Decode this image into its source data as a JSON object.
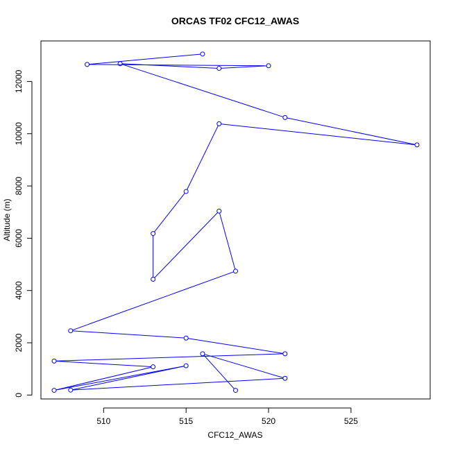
{
  "chart_data": {
    "type": "line",
    "title": "ORCAS TF02 CFC12_AWAS",
    "xlabel": "CFC12_AWAS",
    "ylabel": "Altitude (m)",
    "xlim": [
      506.2,
      529.8
    ],
    "ylim": [
      -150,
      13550
    ],
    "xticks": [
      510,
      515,
      520,
      525
    ],
    "yticks": [
      0,
      2000,
      4000,
      6000,
      8000,
      10000,
      12000
    ],
    "grid": false,
    "markers": "open-circle",
    "color": "#0000ff",
    "series": [
      {
        "x": [
          516,
          509,
          520,
          517,
          511,
          521,
          529,
          517,
          515,
          513,
          513,
          517,
          518,
          508,
          515,
          521,
          507,
          513,
          507,
          515,
          508,
          521,
          516,
          518
        ],
        "y": [
          13050,
          12650,
          12600,
          12500,
          12680,
          10620,
          9570,
          10380,
          7790,
          6180,
          4430,
          7040,
          4740,
          2460,
          2180,
          1580,
          1300,
          1080,
          180,
          1120,
          190,
          640,
          1580,
          180
        ]
      }
    ]
  }
}
